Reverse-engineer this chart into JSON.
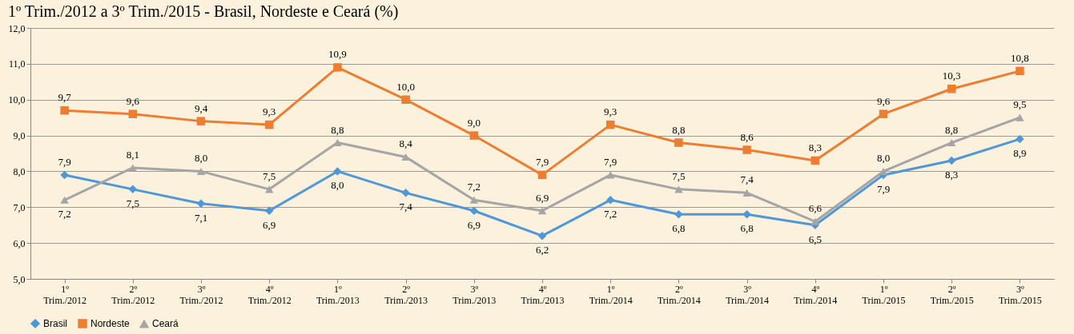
{
  "chart_data": {
    "type": "line",
    "title": "1º Trim./2012 a 3º Trim./2015 - Brasil, Nordeste e Ceará (%)",
    "categories": [
      "1º Trim./2012",
      "2º Trim./2012",
      "3º Trim./2012",
      "4º Trim./2012",
      "1º Trim./2013",
      "2º Trim./2013",
      "3º Trim./2013",
      "4º Trim./2013",
      "1º Trim./2014",
      "2º Trim./2014",
      "3º Trim./2014",
      "4º Trim./2014",
      "1º Trim./2015",
      "2º Trim./2015",
      "3º Trim./2015"
    ],
    "series": [
      {
        "name": "Brasil",
        "color": "#4f97d6",
        "marker": "diamond",
        "values": [
          7.9,
          7.5,
          7.1,
          6.9,
          8.0,
          7.4,
          6.9,
          6.2,
          7.2,
          6.8,
          6.8,
          6.5,
          7.9,
          8.3,
          8.9
        ],
        "value_labels": [
          "7,9",
          "7,5",
          "7,1",
          "6,9",
          "8,0",
          "7,4",
          "6,9",
          "6,2",
          "7,2",
          "6,8",
          "6,8",
          "6,5",
          "7,9",
          "8,3",
          "8,9"
        ]
      },
      {
        "name": "Nordeste",
        "color": "#ed7d31",
        "marker": "square",
        "values": [
          9.7,
          9.6,
          9.4,
          9.3,
          10.9,
          10.0,
          9.0,
          7.9,
          9.3,
          8.8,
          8.6,
          8.3,
          9.6,
          10.3,
          10.8
        ],
        "value_labels": [
          "9,7",
          "9,6",
          "9,4",
          "9,3",
          "10,9",
          "10,0",
          "9,0",
          "7,9",
          "9,3",
          "8,8",
          "8,6",
          "8,3",
          "9,6",
          "10,3",
          "10,8"
        ]
      },
      {
        "name": "Ceará",
        "color": "#a5a5a5",
        "marker": "triangle",
        "values": [
          7.2,
          8.1,
          8.0,
          7.5,
          8.8,
          8.4,
          7.2,
          6.9,
          7.9,
          7.5,
          7.4,
          6.6,
          8.0,
          8.8,
          9.5
        ],
        "value_labels": [
          "7,2",
          "8,1",
          "8,0",
          "7,5",
          "8,8",
          "8,4",
          "7,2",
          "6,9",
          "7,9",
          "7,5",
          "7,4",
          "6,6",
          "8,0",
          "8,8",
          "9,5"
        ]
      }
    ],
    "ylim": [
      5.0,
      12.0
    ],
    "yticks": [
      {
        "value": 5,
        "label": "5,0"
      },
      {
        "value": 6,
        "label": "6,0"
      },
      {
        "value": 7,
        "label": "7,0"
      },
      {
        "value": 8,
        "label": "8,0"
      },
      {
        "value": 9,
        "label": "9,0"
      },
      {
        "value": 10,
        "label": "10,0"
      },
      {
        "value": 11,
        "label": "11,0"
      },
      {
        "value": 12,
        "label": "12,0"
      }
    ],
    "grid": "y",
    "legend": "bottom",
    "line_style": "solid"
  }
}
